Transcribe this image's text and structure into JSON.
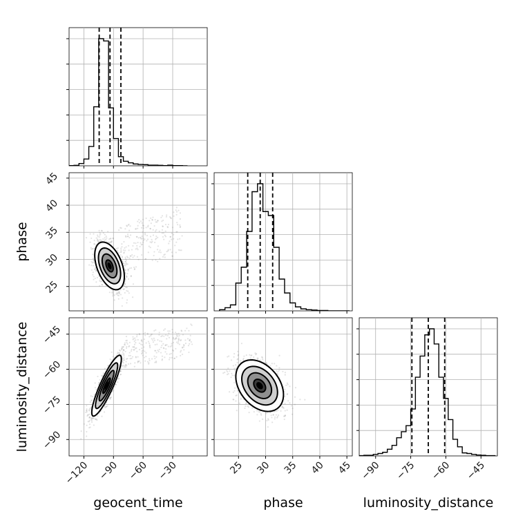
{
  "chart_data": {
    "type": "corner",
    "parameters": [
      "geocent_time",
      "phase",
      "luminosity_distance"
    ],
    "axes": {
      "geocent_time": {
        "label": "geocent_time",
        "range": [
          -135,
          5
        ],
        "ticks": [
          -120,
          -90,
          -60,
          -30
        ],
        "tick_labels": [
          "−120",
          "−90",
          "−60",
          "−30"
        ]
      },
      "phase": {
        "label": "phase",
        "range": [
          20.5,
          46
        ],
        "ticks": [
          25,
          30,
          35,
          40,
          45
        ],
        "tick_labels": [
          "25",
          "30",
          "35",
          "40",
          "45"
        ],
        "y_ticks": [
          25,
          30,
          35,
          40,
          45
        ],
        "y_tick_labels": [
          "25",
          "30",
          "35",
          "40",
          "45"
        ]
      },
      "luminosity_distance": {
        "label": "luminosity_distance",
        "range": [
          -97,
          -38
        ],
        "ticks": [
          -90,
          -75,
          -60,
          -45
        ],
        "tick_labels": [
          "−90",
          "−75",
          "−60",
          "−45"
        ]
      }
    },
    "histograms": {
      "geocent_time": {
        "bin_edges": [
          -135,
          -130,
          -125,
          -120,
          -115,
          -110,
          -105,
          -100,
          -95,
          -90,
          -85,
          -80,
          -75,
          -70,
          -65,
          -60,
          -55,
          -50,
          -45,
          -40,
          -35,
          -30,
          -25,
          -20,
          -15
        ],
        "counts": [
          1,
          2,
          10,
          30,
          85,
          260,
          560,
          550,
          255,
          120,
          40,
          20,
          13,
          8,
          6,
          5,
          3,
          3,
          2,
          1,
          3,
          1,
          1,
          0
        ],
        "quantiles": [
          -104.5,
          -93.5,
          -82.5
        ]
      },
      "phase": {
        "bin_edges": [
          21.5,
          22.5,
          23.5,
          24.5,
          25.5,
          26.5,
          27.5,
          28.5,
          29.5,
          30.5,
          31.5,
          32.5,
          33.5,
          34.5,
          35.5,
          36.5,
          37.5,
          38.5,
          39.5,
          40.5,
          41.5,
          42.5,
          43.5,
          44.5,
          45.5
        ],
        "counts": [
          3,
          8,
          15,
          70,
          110,
          200,
          300,
          320,
          250,
          240,
          160,
          80,
          45,
          20,
          10,
          5,
          3,
          2,
          1,
          1,
          0,
          0,
          0,
          0
        ],
        "quantiles": [
          26.7,
          29.0,
          31.3
        ]
      },
      "luminosity_distance": {
        "bin_edges": [
          -97,
          -95,
          -93,
          -91,
          -89,
          -87,
          -85,
          -83,
          -81,
          -79,
          -77,
          -75,
          -73,
          -71,
          -69,
          -67,
          -65,
          -63,
          -61,
          -59,
          -57,
          -55,
          -53,
          -51,
          -49,
          -47,
          -45,
          -43,
          -41,
          -39
        ],
        "counts": [
          1,
          2,
          2,
          5,
          8,
          12,
          22,
          35,
          60,
          80,
          100,
          155,
          260,
          330,
          400,
          420,
          370,
          260,
          190,
          120,
          55,
          30,
          10,
          8,
          5,
          3,
          2,
          1,
          1,
          0
        ],
        "quantiles": [
          -74.5,
          -67.5,
          -60.5
        ]
      }
    },
    "pairs": [
      {
        "x": "geocent_time",
        "y": "phase",
        "center": [
          -94,
          28.8
        ],
        "sigma": [
          7.5,
          2.2
        ],
        "rho": -0.45,
        "outlier_tail": {
          "x_range": [
            -85,
            -20
          ],
          "y_range": [
            27,
            40
          ]
        },
        "contour_levels_sigma": [
          0.5,
          1.0,
          1.5,
          2.0
        ]
      },
      {
        "x": "geocent_time",
        "y": "luminosity_distance",
        "center": [
          -97,
          -67
        ],
        "sigma": [
          7.5,
          6.5
        ],
        "rho": 0.88,
        "outlier_tail": {
          "x_range": [
            -80,
            -10
          ],
          "y_range": [
            -60,
            -40
          ]
        },
        "contour_levels_sigma": [
          0.5,
          1.0,
          1.5,
          2.0
        ]
      },
      {
        "x": "phase",
        "y": "luminosity_distance",
        "center": [
          28.9,
          -67
        ],
        "sigma": [
          2.2,
          5.5
        ],
        "rho": -0.35,
        "outlier_tail": null,
        "contour_levels_sigma": [
          0.5,
          1.0,
          1.5,
          2.0
        ]
      }
    ],
    "grid": true,
    "legend": "none"
  }
}
